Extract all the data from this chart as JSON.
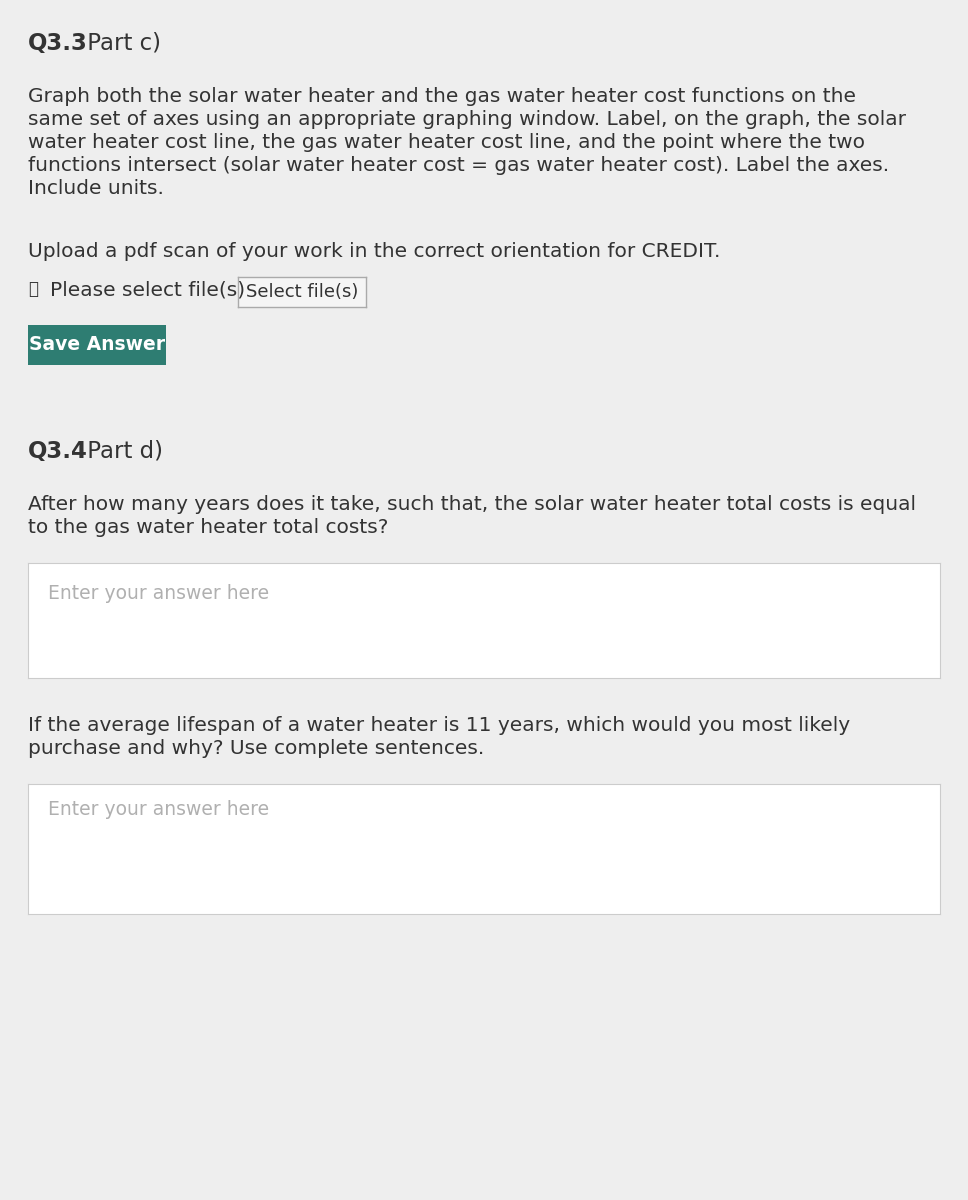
{
  "bg_color": "#eeeeee",
  "title_q33_bold": "Q3.3",
  "title_q33_normal": " Part c)",
  "body_q33_line1": "Graph both the solar water heater and the gas water heater cost functions on the",
  "body_q33_line2": "same set of axes using an appropriate graphing window. Label, on the graph, the solar",
  "body_q33_line3": "water heater cost line, the gas water heater cost line, and the point where the two",
  "body_q33_line4": "functions intersect (solar water heater cost = gas water heater cost). Label the axes.",
  "body_q33_line5": "Include units.",
  "upload_text": "Upload a pdf scan of your work in the correct orientation for CREDIT.",
  "file_label": "Please select file(s)",
  "select_btn_text": "Select file(s)",
  "save_btn_text": "Save Answer",
  "save_btn_color": "#2e7d72",
  "title_q34_bold": "Q3.4",
  "title_q34_normal": " Part d)",
  "body_q34_line1": "After how many years does it take, such that, the solar water heater total costs is equal",
  "body_q34_line2": "to the gas water heater total costs?",
  "placeholder1": "Enter your answer here",
  "body_q34b_line1": "If the average lifespan of a water heater is 11 years, which would you most likely",
  "body_q34b_line2": "purchase and why? Use complete sentences.",
  "placeholder2": "Enter your answer here",
  "text_color": "#333333",
  "placeholder_color": "#b0b0b0",
  "box_border_color": "#cccccc",
  "box_bg_color": "#ffffff",
  "font_size_body": 14.5,
  "font_size_title": 16.5,
  "font_size_btn": 13.0,
  "font_size_placeholder": 13.5
}
